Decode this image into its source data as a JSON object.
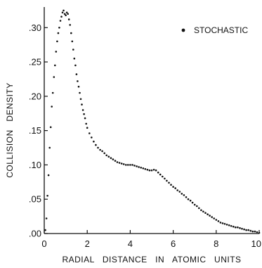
{
  "chart_data": {
    "type": "scatter",
    "title": "",
    "xlabel": "RADIAL   DISTANCE   IN   ATOMIC   UNITS",
    "ylabel": "COLLISION   DENSITY",
    "xlim": [
      0,
      10
    ],
    "ylim": [
      0,
      0.33
    ],
    "x_ticks": [
      0,
      2,
      4,
      6,
      8,
      10
    ],
    "x_tick_labels": [
      "0",
      "2",
      "4",
      "6",
      "8",
      "10"
    ],
    "y_ticks": [
      0,
      0.05,
      0.1,
      0.15,
      0.2,
      0.25,
      0.3
    ],
    "y_tick_labels": [
      ".00",
      ".05",
      ".10",
      ".15",
      ".20",
      ".25",
      ".30"
    ],
    "grid": false,
    "legend_position": "top-right",
    "series": [
      {
        "name": "STOCHASTIC",
        "marker": "dot",
        "color": "#111111",
        "x": [
          0.05,
          0.1,
          0.15,
          0.2,
          0.25,
          0.3,
          0.35,
          0.4,
          0.45,
          0.5,
          0.55,
          0.6,
          0.65,
          0.7,
          0.75,
          0.8,
          0.85,
          0.9,
          0.95,
          1.0,
          1.05,
          1.1,
          1.15,
          1.2,
          1.25,
          1.3,
          1.35,
          1.4,
          1.45,
          1.5,
          1.55,
          1.6,
          1.65,
          1.7,
          1.75,
          1.8,
          1.85,
          1.9,
          1.95,
          2.0,
          2.1,
          2.2,
          2.3,
          2.4,
          2.5,
          2.6,
          2.7,
          2.8,
          2.9,
          3.0,
          3.1,
          3.2,
          3.3,
          3.4,
          3.5,
          3.6,
          3.7,
          3.8,
          3.9,
          4.0,
          4.1,
          4.2,
          4.3,
          4.4,
          4.5,
          4.6,
          4.7,
          4.8,
          4.9,
          5.0,
          5.1,
          5.2,
          5.3,
          5.4,
          5.5,
          5.6,
          5.7,
          5.8,
          5.9,
          6.0,
          6.1,
          6.2,
          6.3,
          6.4,
          6.5,
          6.6,
          6.7,
          6.8,
          6.9,
          7.0,
          7.1,
          7.2,
          7.3,
          7.4,
          7.5,
          7.6,
          7.7,
          7.8,
          7.9,
          8.0,
          8.1,
          8.2,
          8.3,
          8.4,
          8.5,
          8.6,
          8.7,
          8.8,
          8.9,
          9.0,
          9.1,
          9.2,
          9.3,
          9.4,
          9.5,
          9.6,
          9.7,
          9.8,
          9.9,
          10.0
        ],
        "y": [
          0.005,
          0.022,
          0.055,
          0.085,
          0.125,
          0.155,
          0.185,
          0.205,
          0.228,
          0.245,
          0.265,
          0.28,
          0.292,
          0.3,
          0.31,
          0.316,
          0.322,
          0.325,
          0.32,
          0.318,
          0.322,
          0.32,
          0.312,
          0.304,
          0.292,
          0.28,
          0.268,
          0.255,
          0.245,
          0.232,
          0.222,
          0.214,
          0.205,
          0.196,
          0.188,
          0.18,
          0.174,
          0.168,
          0.16,
          0.154,
          0.146,
          0.14,
          0.134,
          0.129,
          0.125,
          0.122,
          0.12,
          0.117,
          0.114,
          0.112,
          0.11,
          0.108,
          0.106,
          0.104,
          0.103,
          0.102,
          0.101,
          0.1,
          0.1,
          0.1,
          0.1,
          0.099,
          0.098,
          0.097,
          0.096,
          0.095,
          0.094,
          0.093,
          0.092,
          0.092,
          0.093,
          0.092,
          0.089,
          0.086,
          0.083,
          0.08,
          0.077,
          0.074,
          0.071,
          0.068,
          0.066,
          0.063,
          0.061,
          0.058,
          0.056,
          0.053,
          0.05,
          0.048,
          0.045,
          0.042,
          0.04,
          0.037,
          0.034,
          0.032,
          0.03,
          0.028,
          0.026,
          0.024,
          0.022,
          0.02,
          0.018,
          0.016,
          0.015,
          0.014,
          0.013,
          0.012,
          0.011,
          0.01,
          0.009,
          0.009,
          0.008,
          0.007,
          0.006,
          0.005,
          0.005,
          0.004,
          0.003,
          0.003,
          0.002,
          0.001
        ]
      }
    ]
  }
}
